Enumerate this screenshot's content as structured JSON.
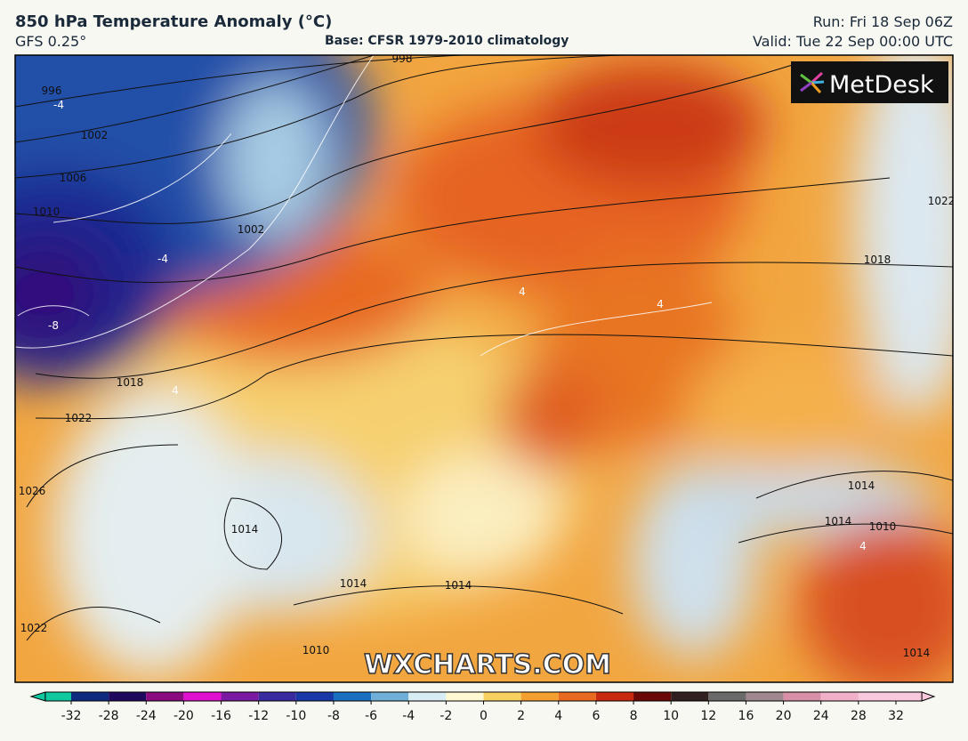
{
  "header": {
    "title": "850 hPa Temperature Anomaly (°C)",
    "model": "GFS 0.25°",
    "base": "Base: CFSR 1979-2010 climatology",
    "run": "Run: Fri 18 Sep 06Z",
    "valid": "Valid: Tue 22 Sep 00:00 UTC"
  },
  "logo": "MetDesk",
  "watermark": "WXCHARTS.COM",
  "contour_labels": [
    "998",
    "996",
    "1002",
    "1006",
    "1010",
    "1002",
    "1018",
    "1022",
    "1026",
    "1014",
    "1014",
    "1022",
    "1018",
    "1014",
    "1014",
    "1010",
    "1014",
    "1010",
    "1022",
    "1014",
    "-4",
    "-4",
    "-8",
    "4",
    "4",
    "4",
    "4"
  ],
  "colorbar": {
    "ticks": [
      -32,
      -28,
      -24,
      -20,
      -16,
      -12,
      -10,
      -8,
      -6,
      -4,
      -2,
      0,
      2,
      4,
      6,
      8,
      10,
      12,
      16,
      20,
      24,
      28,
      32
    ]
  }
}
